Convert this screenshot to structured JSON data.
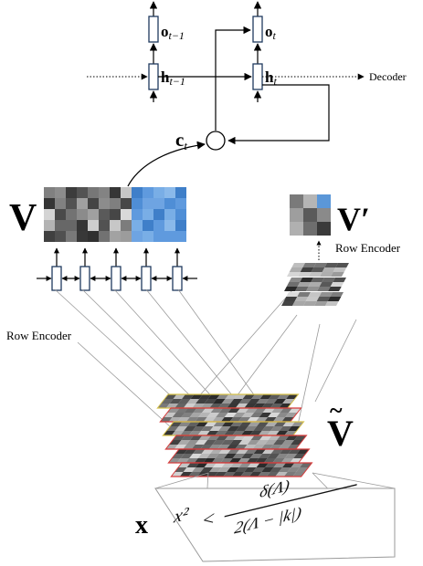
{
  "rnn": {
    "output_prev": "o",
    "output_prev_sub": "t−1",
    "output_cur": "o",
    "output_cur_sub": "t",
    "hidden_prev": "h",
    "hidden_prev_sub": "t−1",
    "hidden_cur": "h",
    "hidden_cur_sub": "t",
    "context": "c",
    "context_sub": "t",
    "decoder_label": "Decoder"
  },
  "encoders": {
    "v_label": "V",
    "v_prime_label": "V′",
    "row_encoder_left": "Row Encoder",
    "row_encoder_right": "Row Encoder"
  },
  "features": {
    "v_tilde_label": "V",
    "v_tilde_accent": "~",
    "x_label": "x"
  },
  "formula": {
    "lhs": "x²",
    "lt": "<",
    "numerator": "δ(Λ)",
    "denominator": "2(Λ − |k|)"
  },
  "colors": {
    "highlight_blue": "#5b97d8",
    "layer_border_red": "#d83a3a",
    "layer_border_yellow": "#d7c24a",
    "line_gray": "#9a9a9a",
    "cell_outline": "#1f3a5f"
  }
}
